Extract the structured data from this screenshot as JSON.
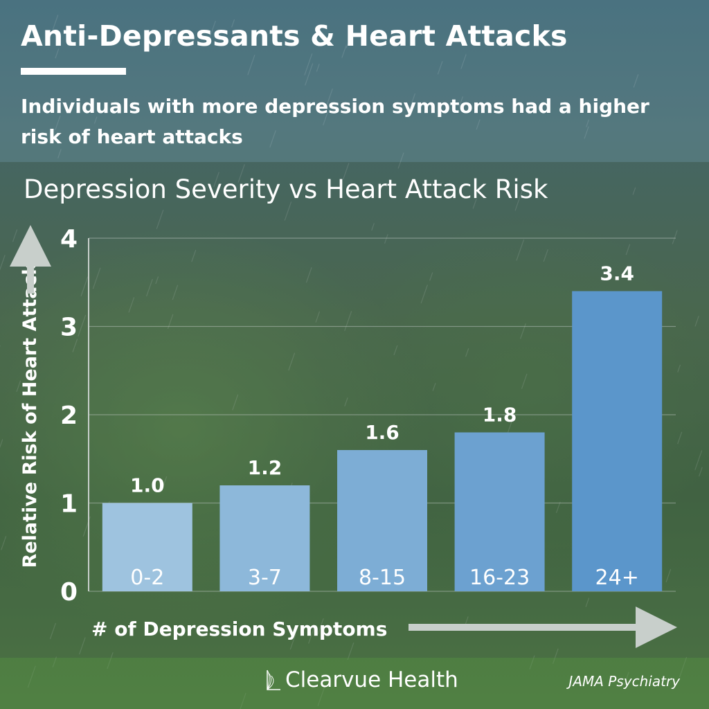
{
  "header": {
    "title": "Anti-Depressants & Heart Attacks",
    "subtitle": "Individuals with more depression symptoms had a higher risk of heart attacks"
  },
  "footer": {
    "brand": "Clearvue Health",
    "brand_icon": "clearvue-logo-icon",
    "source": "JAMA Psychiatry"
  },
  "colors": {
    "bar_light": "#9ec3df",
    "bar_dark": "#5b96cb",
    "text": "#ffffff",
    "axis": "#c8cfcb"
  },
  "chart_data": {
    "type": "bar",
    "title": "Depression Severity vs Heart Attack Risk",
    "xlabel": "# of Depression Symptoms",
    "ylabel": "Relative Risk of Heart Attack",
    "categories": [
      "0-2",
      "3-7",
      "8-15",
      "16-23",
      "24+"
    ],
    "values": [
      1.0,
      1.2,
      1.6,
      1.8,
      3.4
    ],
    "value_labels": [
      "1.0",
      "1.2",
      "1.6",
      "1.8",
      "3.4"
    ],
    "ylim": [
      0,
      4
    ],
    "yticks": [
      "0",
      "1",
      "2",
      "3",
      "4"
    ],
    "grid": true,
    "legend": "none"
  }
}
